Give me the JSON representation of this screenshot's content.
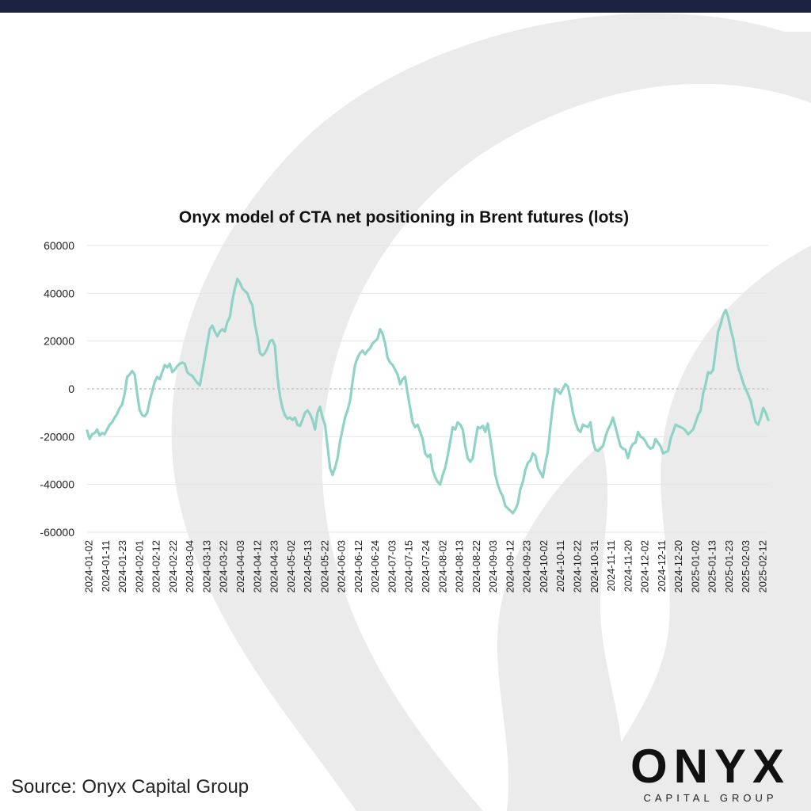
{
  "footer": {
    "source_text": "Source: Onyx Capital Group"
  },
  "logo": {
    "wordmark": "ONYX",
    "subtitle": "CAPITAL GROUP",
    "mark": "flame-logo-icon"
  },
  "colors": {
    "line": "#8fd3c7",
    "grid": "#e6e6e6",
    "zero": "#c8c8c8",
    "watermark": "#ebebeb",
    "top_bar": "#1c2340"
  },
  "chart_data": {
    "type": "line",
    "title": "Onyx model of CTA net positioning in Brent futures (lots)",
    "xlabel": "",
    "ylabel": "",
    "ylim": [
      -60000,
      60000
    ],
    "yticks": [
      60000,
      40000,
      20000,
      0,
      -20000,
      -40000,
      -60000
    ],
    "grid": true,
    "legend": "none",
    "x_tick_labels": [
      "2024-01-02",
      "2024-01-11",
      "2024-01-23",
      "2024-02-01",
      "2024-02-12",
      "2024-02-22",
      "2024-03-04",
      "2024-03-13",
      "2024-03-22",
      "2024-04-03",
      "2024-04-12",
      "2024-04-23",
      "2024-05-02",
      "2024-05-13",
      "2024-05-22",
      "2024-06-03",
      "2024-06-12",
      "2024-06-24",
      "2024-07-03",
      "2024-07-15",
      "2024-07-24",
      "2024-08-02",
      "2024-08-13",
      "2024-08-22",
      "2024-09-03",
      "2024-09-12",
      "2024-09-23",
      "2024-10-02",
      "2024-10-11",
      "2024-10-22",
      "2024-10-31",
      "2024-11-11",
      "2024-11-20",
      "2024-12-02",
      "2024-12-11",
      "2024-12-20",
      "2025-01-02",
      "2025-01-13",
      "2025-01-23",
      "2025-02-03",
      "2025-02-12"
    ],
    "series": [
      {
        "values": [
          -17500,
          -21000,
          -19000,
          -18500,
          -17000,
          -19500,
          -18500,
          -19000,
          -17000,
          -15000,
          -14000,
          -12000,
          -10500,
          -8000,
          -6500,
          -2000,
          5000,
          6000,
          7500,
          6000,
          -2000,
          -9000,
          -11000,
          -11500,
          -10000,
          -5000,
          -1000,
          3000,
          5000,
          4000,
          7000,
          10000,
          9000,
          10500,
          7000,
          8000,
          9500,
          10500,
          11000,
          10500,
          7000,
          6000,
          5500,
          4000,
          2500,
          1500,
          7000,
          13000,
          19000,
          25000,
          26500,
          24000,
          22000,
          24000,
          25000,
          24000,
          28000,
          30000,
          37000,
          42000,
          46000,
          44500,
          42000,
          41000,
          40000,
          37000,
          35000,
          27000,
          22000,
          15000,
          14000,
          15000,
          17000,
          20000,
          20500,
          18000,
          5000,
          -3000,
          -8000,
          -11000,
          -12500,
          -12000,
          -13000,
          -12000,
          -15000,
          -15500,
          -13000,
          -10000,
          -9000,
          -10500,
          -13000,
          -17000,
          -10000,
          -7500,
          -12000,
          -15000,
          -24000,
          -33000,
          -36000,
          -33000,
          -29000,
          -22000,
          -17000,
          -12000,
          -9000,
          -5000,
          3000,
          10000,
          13000,
          15000,
          16000,
          14500,
          16000,
          17000,
          19000,
          20000,
          21000,
          25000,
          23000,
          19000,
          13000,
          11000,
          10000,
          8000,
          6000,
          2000,
          4000,
          5000,
          -2000,
          -8000,
          -14000,
          -16000,
          -15000,
          -18000,
          -21000,
          -27000,
          -28500,
          -27500,
          -34000,
          -37000,
          -39000,
          -40000,
          -36000,
          -33000,
          -28000,
          -22000,
          -16000,
          -17000,
          -14000,
          -15000,
          -17000,
          -24000,
          -29000,
          -30500,
          -29000,
          -22000,
          -16000,
          -16500,
          -15500,
          -18000,
          -14500,
          -21000,
          -28000,
          -36000,
          -40000,
          -43000,
          -45000,
          -49000,
          -50000,
          -51000,
          -52000,
          -50500,
          -48000,
          -42000,
          -39000,
          -34000,
          -31000,
          -30000,
          -27000,
          -28000,
          -33000,
          -35000,
          -37000,
          -31000,
          -26000,
          -16000,
          -7000,
          0,
          -1000,
          -2000,
          0,
          2000,
          1000,
          -4000,
          -10000,
          -14000,
          -17000,
          -18000,
          -15000,
          -15500,
          -16000,
          -14000,
          -22000,
          -25500,
          -26000,
          -25000,
          -24000,
          -20000,
          -17000,
          -15000,
          -12000,
          -16000,
          -20000,
          -24000,
          -25000,
          -25500,
          -29000,
          -25000,
          -23000,
          -22500,
          -18000,
          -20000,
          -20500,
          -22000,
          -24000,
          -25000,
          -24500,
          -21000,
          -22500,
          -24000,
          -27000,
          -26500,
          -26000,
          -21000,
          -18000,
          -15000,
          -15500,
          -16000,
          -16500,
          -17500,
          -19000,
          -18000,
          -17000,
          -14000,
          -11000,
          -9000,
          -2000,
          2000,
          7000,
          6500,
          8000,
          16000,
          24000,
          27000,
          31000,
          33000,
          30000,
          25000,
          21000,
          15000,
          9000,
          6000,
          2500,
          0,
          -2500,
          -5000,
          -10000,
          -14000,
          -15000,
          -12000,
          -8000,
          -10000,
          -13000
        ]
      }
    ]
  }
}
